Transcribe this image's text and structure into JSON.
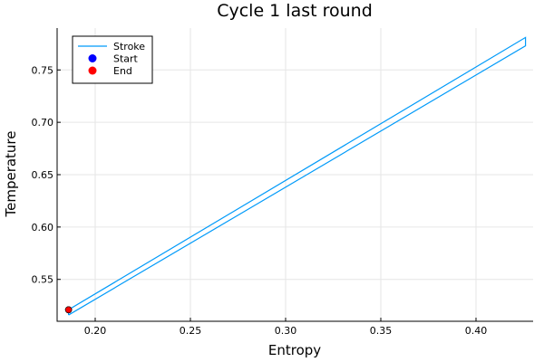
{
  "chart_data": {
    "type": "line",
    "title": "Cycle 1 last round",
    "xlabel": "Entropy",
    "ylabel": "Temperature",
    "xlim": [
      0.18,
      0.43
    ],
    "ylim": [
      0.51,
      0.79
    ],
    "xticks": [
      0.2,
      0.25,
      0.3,
      0.35,
      0.4
    ],
    "xtick_labels": [
      "0.20",
      "0.25",
      "0.30",
      "0.35",
      "0.40"
    ],
    "yticks": [
      0.55,
      0.6,
      0.65,
      0.7,
      0.75
    ],
    "ytick_labels": [
      "0.55",
      "0.60",
      "0.65",
      "0.70",
      "0.75"
    ],
    "grid": true,
    "legend_position": "top-left",
    "series": [
      {
        "name": "Stroke",
        "kind": "line",
        "color": "#009af9",
        "x": [
          0.186,
          0.426,
          0.426,
          0.186,
          0.186
        ],
        "y": [
          0.516,
          0.773,
          0.781,
          0.521,
          0.516
        ]
      },
      {
        "name": "Start",
        "kind": "point",
        "color": "#0000ff",
        "x": [
          0.186
        ],
        "y": [
          0.521
        ]
      },
      {
        "name": "End",
        "kind": "point",
        "color": "#ff0000",
        "x": [
          0.186
        ],
        "y": [
          0.521
        ]
      }
    ]
  }
}
